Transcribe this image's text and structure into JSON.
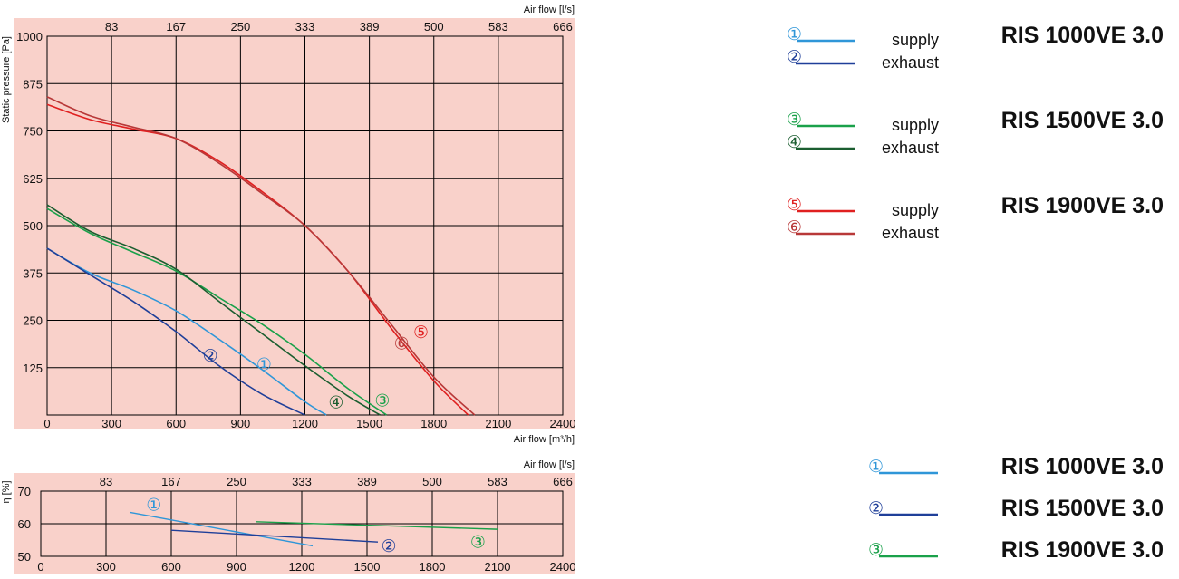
{
  "chart_data": [
    {
      "type": "line",
      "title": "",
      "xlabel": "Air flow [m³/h]",
      "ylabel": "Static pressure [Pa]",
      "x2label": "Air flow [l/s]",
      "xlim": [
        0,
        2400
      ],
      "ylim": [
        0,
        1000
      ],
      "xticks": [
        "0",
        "300",
        "600",
        "900",
        "1200",
        "1500",
        "1800",
        "2100",
        "2400"
      ],
      "yticks": [
        "125",
        "250",
        "375",
        "500",
        "625",
        "750",
        "875",
        "1000"
      ],
      "x2ticks": [
        "83",
        "167",
        "250",
        "333",
        "389",
        "500",
        "583",
        "666"
      ],
      "grid": true,
      "background": "#f9d1ca",
      "series": [
        {
          "id": "1",
          "marker": "①",
          "color": "#2f96d8",
          "label_at": [
            1010,
            135
          ],
          "x": [
            0,
            200,
            400,
            600,
            800,
            1000,
            1200,
            1300
          ],
          "y": [
            440,
            375,
            330,
            275,
            200,
            120,
            35,
            0
          ]
        },
        {
          "id": "2",
          "marker": "②",
          "color": "#1f3f99",
          "label_at": [
            760,
            158
          ],
          "x": [
            0,
            200,
            400,
            600,
            800,
            1000,
            1200
          ],
          "y": [
            440,
            370,
            300,
            220,
            130,
            55,
            0
          ]
        },
        {
          "id": "3",
          "marker": "③",
          "color": "#1aa14a",
          "label_at": [
            1560,
            40
          ],
          "x": [
            0,
            200,
            400,
            600,
            800,
            1000,
            1200,
            1400,
            1580
          ],
          "y": [
            545,
            480,
            430,
            380,
            310,
            240,
            160,
            70,
            0
          ]
        },
        {
          "id": "4",
          "marker": "④",
          "color": "#1b5e30",
          "label_at": [
            1345,
            35
          ],
          "x": [
            0,
            200,
            400,
            600,
            800,
            1000,
            1200,
            1400,
            1550
          ],
          "y": [
            555,
            485,
            440,
            385,
            300,
            215,
            130,
            50,
            0
          ]
        },
        {
          "id": "5",
          "marker": "⑤",
          "color": "#e02020",
          "label_at": [
            1740,
            220
          ],
          "x": [
            0,
            200,
            400,
            600,
            800,
            1000,
            1200,
            1400,
            1600,
            1800,
            1960
          ],
          "y": [
            820,
            780,
            755,
            730,
            670,
            590,
            500,
            380,
            230,
            90,
            0
          ]
        },
        {
          "id": "6",
          "marker": "⑥",
          "color": "#b83838",
          "label_at": [
            1650,
            190
          ],
          "x": [
            0,
            200,
            400,
            600,
            800,
            1000,
            1200,
            1400,
            1600,
            1800,
            1990
          ],
          "y": [
            840,
            790,
            760,
            730,
            665,
            585,
            500,
            380,
            240,
            100,
            0
          ]
        }
      ]
    },
    {
      "type": "line",
      "title": "",
      "xlabel": "",
      "ylabel": "η [%]",
      "x2label": "Air flow [l/s]",
      "xlim": [
        0,
        2400
      ],
      "ylim": [
        50,
        70
      ],
      "xticks": [
        "0",
        "300",
        "600",
        "900",
        "1200",
        "1500",
        "1800",
        "2100",
        "2400"
      ],
      "yticks": [
        "50",
        "60",
        "70"
      ],
      "x2ticks": [
        "83",
        "167",
        "250",
        "333",
        "389",
        "500",
        "583",
        "666"
      ],
      "grid": true,
      "background": "#f9d1ca",
      "series": [
        {
          "id": "1",
          "marker": "①",
          "color": "#2f96d8",
          "label_at": [
            520,
            66
          ],
          "x": [
            410,
            1250
          ],
          "y": [
            63.5,
            53.2
          ]
        },
        {
          "id": "2",
          "marker": "②",
          "color": "#1f3f99",
          "label_at": [
            1600,
            53.3
          ],
          "x": [
            600,
            1550
          ],
          "y": [
            58,
            54.4
          ]
        },
        {
          "id": "3",
          "marker": "③",
          "color": "#1aa14a",
          "label_at": [
            2010,
            54.6
          ],
          "x": [
            990,
            2100
          ],
          "y": [
            60.6,
            58.3
          ]
        }
      ]
    }
  ],
  "legend_top": [
    {
      "marker": "①",
      "color": "#2f96d8",
      "word": "supply",
      "model": "RIS 1000VE 3.0"
    },
    {
      "marker": "②",
      "color": "#1f3f99",
      "word": "exhaust"
    },
    {
      "marker": "③",
      "color": "#1aa14a",
      "word": "supply",
      "model": "RIS 1500VE 3.0"
    },
    {
      "marker": "④",
      "color": "#1b5e30",
      "word": "exhaust"
    },
    {
      "marker": "⑤",
      "color": "#e02020",
      "word": "supply",
      "model": "RIS  1900VE 3.0"
    },
    {
      "marker": "⑥",
      "color": "#b83838",
      "word": "exhaust"
    }
  ],
  "legend_bottom": [
    {
      "marker": "①",
      "color": "#2f96d8",
      "model": "RIS 1000VE 3.0"
    },
    {
      "marker": "②",
      "color": "#1f3f99",
      "model": "RIS 1500VE 3.0"
    },
    {
      "marker": "③",
      "color": "#1aa14a",
      "model": "RIS 1900VE 3.0"
    }
  ]
}
